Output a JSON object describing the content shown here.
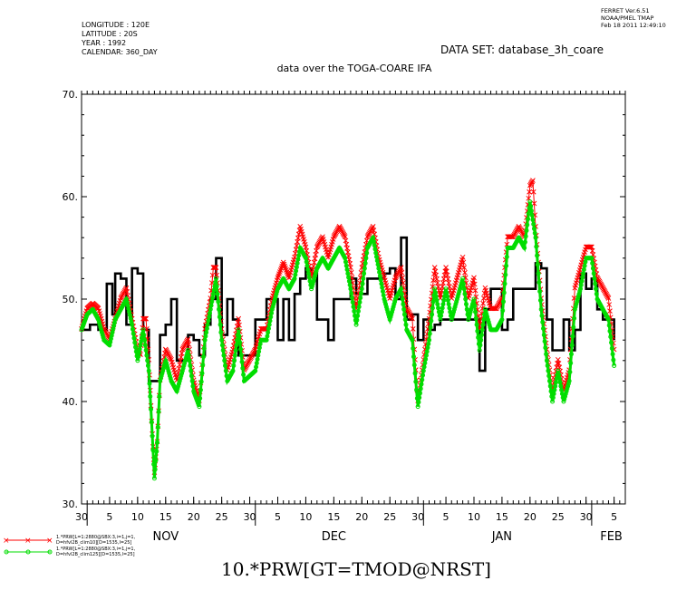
{
  "header": {
    "meta_lines": [
      "LONGITUDE : 120E",
      "LATITUDE : 20S",
      "YEAR : 1992",
      "CALENDAR: 360_DAY"
    ],
    "ferret_lines": [
      "FERRET  Ver.6.51",
      "NOAA/PMEL TMAP",
      "Feb 18 2011 12:49:10"
    ],
    "dataset": "DATA SET: database_3h_coare",
    "title": "data over the TOGA-COARE IFA"
  },
  "legend": {
    "entries": [
      {
        "line1": "1.*PRW[L=1:2880@SBX:3,i=1,j=1,",
        "line2": "D=hfvl2B_clim10][D=1535,l=25]",
        "color": "#ff0000",
        "marker": "x"
      },
      {
        "line1": "1.*PRW[L=1:2880@SBX:3,i=1,j=1,",
        "line2": "D=hfvl2B_clim125][D=1535,l=25]",
        "color": "#00dd00",
        "marker": "o"
      }
    ]
  },
  "footer_label": "10.*PRW[GT=TMOD@NRST]",
  "chart_data": {
    "type": "line",
    "title": "data over the TOGA-COARE IFA",
    "xlabel": "",
    "ylabel": "",
    "ylim": [
      30,
      70
    ],
    "xlim": [
      0,
      97
    ],
    "grid": false,
    "legend_position": "bottom-left",
    "yticks": [
      "30.",
      "40.",
      "50.",
      "60.",
      "70."
    ],
    "xticks_day": [
      "30",
      "5",
      "10",
      "15",
      "20",
      "25",
      "30",
      "5",
      "10",
      "15",
      "20",
      "25",
      "30",
      "5",
      "10",
      "15",
      "20",
      "25",
      "30",
      "5"
    ],
    "month_labels": [
      "NOV",
      "DEC",
      "JAN",
      "FEB"
    ],
    "series": [
      {
        "color": "#000000",
        "style": "step",
        "points": [
          [
            0,
            47
          ],
          [
            1.5,
            47.5
          ],
          [
            3,
            47
          ],
          [
            4.5,
            51.5
          ],
          [
            5.5,
            48.5
          ],
          [
            6,
            52.5
          ],
          [
            7,
            52
          ],
          [
            8,
            47.5
          ],
          [
            9,
            53
          ],
          [
            10,
            52.5
          ],
          [
            11,
            47
          ],
          [
            12,
            42
          ],
          [
            14,
            46.5
          ],
          [
            15,
            47.5
          ],
          [
            16,
            50
          ],
          [
            17,
            44
          ],
          [
            19,
            46.5
          ],
          [
            20,
            46
          ],
          [
            21,
            44.5
          ],
          [
            22,
            47.5
          ],
          [
            23,
            50
          ],
          [
            24,
            54
          ],
          [
            25,
            46.5
          ],
          [
            26,
            50
          ],
          [
            27,
            48
          ],
          [
            28,
            44.5
          ],
          [
            31,
            48
          ],
          [
            33,
            50
          ],
          [
            35,
            46
          ],
          [
            36,
            50
          ],
          [
            37,
            46
          ],
          [
            38,
            50.5
          ],
          [
            39,
            52
          ],
          [
            40,
            53
          ],
          [
            41,
            52.5
          ],
          [
            42,
            48
          ],
          [
            44,
            46
          ],
          [
            45,
            50
          ],
          [
            46,
            50
          ],
          [
            48,
            52
          ],
          [
            49,
            50.5
          ],
          [
            51,
            52
          ],
          [
            53,
            52
          ],
          [
            54,
            52.5
          ],
          [
            55,
            53
          ],
          [
            56,
            50
          ],
          [
            57,
            56
          ],
          [
            58,
            48
          ],
          [
            59,
            48.5
          ],
          [
            60,
            46
          ],
          [
            61,
            48
          ],
          [
            62,
            47
          ],
          [
            63,
            47.5
          ],
          [
            64,
            48
          ],
          [
            70,
            48
          ],
          [
            71,
            43
          ],
          [
            72,
            49
          ],
          [
            73,
            51
          ],
          [
            74,
            51
          ],
          [
            75,
            47
          ],
          [
            76,
            48
          ],
          [
            77,
            51
          ],
          [
            80,
            51
          ],
          [
            81,
            53.5
          ],
          [
            82,
            53
          ],
          [
            83,
            48
          ],
          [
            84,
            45
          ],
          [
            86,
            48
          ],
          [
            87,
            45
          ],
          [
            88,
            47
          ],
          [
            89,
            52.5
          ],
          [
            90,
            51
          ],
          [
            91,
            52
          ],
          [
            92,
            49
          ],
          [
            93,
            48
          ],
          [
            94,
            48
          ],
          [
            95,
            46
          ]
        ]
      },
      {
        "color": "#ff0000",
        "style": "x",
        "points": [
          [
            0,
            47
          ],
          [
            1,
            49
          ],
          [
            2,
            49.5
          ],
          [
            3,
            49
          ],
          [
            4,
            47
          ],
          [
            5,
            46
          ],
          [
            6,
            48
          ],
          [
            7,
            50
          ],
          [
            8,
            51
          ],
          [
            9,
            48
          ],
          [
            10,
            45
          ],
          [
            10.5,
            44.5
          ],
          [
            11,
            48
          ],
          [
            11.5,
            48
          ],
          [
            12,
            44
          ],
          [
            12.5,
            38
          ],
          [
            13,
            33
          ],
          [
            13.5,
            36
          ],
          [
            14,
            42
          ],
          [
            15,
            45
          ],
          [
            16,
            44
          ],
          [
            17,
            42
          ],
          [
            18,
            45
          ],
          [
            19,
            46
          ],
          [
            20,
            42
          ],
          [
            21,
            40
          ],
          [
            22,
            47
          ],
          [
            23,
            50
          ],
          [
            23.5,
            53
          ],
          [
            24,
            53
          ],
          [
            25,
            47
          ],
          [
            26,
            43
          ],
          [
            27,
            45
          ],
          [
            28,
            48
          ],
          [
            29,
            43
          ],
          [
            30,
            44
          ],
          [
            31,
            45
          ],
          [
            32,
            47
          ],
          [
            33,
            47
          ],
          [
            34,
            50
          ],
          [
            35,
            52
          ],
          [
            36,
            53.5
          ],
          [
            37,
            52
          ],
          [
            38,
            54
          ],
          [
            39,
            57
          ],
          [
            40,
            55
          ],
          [
            41,
            52
          ],
          [
            42,
            55
          ],
          [
            43,
            56
          ],
          [
            44,
            54
          ],
          [
            45,
            56
          ],
          [
            46,
            57
          ],
          [
            47,
            56
          ],
          [
            48,
            53
          ],
          [
            49,
            49
          ],
          [
            50,
            53
          ],
          [
            51,
            56
          ],
          [
            52,
            57
          ],
          [
            53,
            54
          ],
          [
            54,
            52
          ],
          [
            55,
            50
          ],
          [
            56,
            52
          ],
          [
            57,
            53
          ],
          [
            58,
            49
          ],
          [
            59,
            48
          ],
          [
            60,
            40
          ],
          [
            61,
            44
          ],
          [
            62,
            48
          ],
          [
            63,
            53
          ],
          [
            64,
            50
          ],
          [
            65,
            53
          ],
          [
            66,
            50
          ],
          [
            67,
            52
          ],
          [
            68,
            54
          ],
          [
            69,
            50
          ],
          [
            70,
            52
          ],
          [
            71,
            47
          ],
          [
            72,
            51
          ],
          [
            73,
            49
          ],
          [
            74,
            49
          ],
          [
            75,
            50
          ],
          [
            76,
            56
          ],
          [
            77,
            56
          ],
          [
            78,
            57
          ],
          [
            79,
            56
          ],
          [
            80,
            61
          ],
          [
            80.5,
            61.5
          ],
          [
            81,
            57
          ],
          [
            82,
            50
          ],
          [
            83,
            45
          ],
          [
            84,
            41
          ],
          [
            85,
            44
          ],
          [
            86,
            41
          ],
          [
            87,
            43
          ],
          [
            88,
            51
          ],
          [
            89,
            53
          ],
          [
            90,
            55
          ],
          [
            91,
            55
          ],
          [
            92,
            52
          ],
          [
            93,
            51
          ],
          [
            94,
            50
          ],
          [
            95,
            45
          ]
        ]
      },
      {
        "color": "#00dd00",
        "style": "o",
        "points": [
          [
            0,
            47
          ],
          [
            1,
            48.5
          ],
          [
            2,
            49
          ],
          [
            3,
            48
          ],
          [
            4,
            46
          ],
          [
            5,
            45.5
          ],
          [
            6,
            48
          ],
          [
            7,
            49
          ],
          [
            8,
            50
          ],
          [
            9,
            47.5
          ],
          [
            10,
            44
          ],
          [
            11,
            47
          ],
          [
            12,
            43
          ],
          [
            12.5,
            38
          ],
          [
            13,
            32.5
          ],
          [
            13.5,
            36
          ],
          [
            14,
            42
          ],
          [
            15,
            44
          ],
          [
            16,
            42
          ],
          [
            17,
            41
          ],
          [
            18,
            43
          ],
          [
            19,
            45
          ],
          [
            20,
            41
          ],
          [
            21,
            39.5
          ],
          [
            22,
            46
          ],
          [
            23,
            49
          ],
          [
            24,
            52
          ],
          [
            25,
            46
          ],
          [
            26,
            42
          ],
          [
            27,
            43
          ],
          [
            28,
            47
          ],
          [
            29,
            42
          ],
          [
            30,
            42.5
          ],
          [
            31,
            43
          ],
          [
            32,
            46
          ],
          [
            33,
            46
          ],
          [
            34,
            49
          ],
          [
            35,
            51
          ],
          [
            36,
            52
          ],
          [
            37,
            51
          ],
          [
            38,
            52
          ],
          [
            39,
            55
          ],
          [
            40,
            54
          ],
          [
            41,
            51
          ],
          [
            42,
            53
          ],
          [
            43,
            54
          ],
          [
            44,
            53
          ],
          [
            45,
            54
          ],
          [
            46,
            55
          ],
          [
            47,
            54
          ],
          [
            48,
            51
          ],
          [
            49,
            47.5
          ],
          [
            50,
            51
          ],
          [
            51,
            55
          ],
          [
            52,
            56
          ],
          [
            53,
            53
          ],
          [
            54,
            50
          ],
          [
            55,
            48
          ],
          [
            56,
            50
          ],
          [
            57,
            51
          ],
          [
            58,
            47
          ],
          [
            59,
            46
          ],
          [
            60,
            39.5
          ],
          [
            61,
            43
          ],
          [
            62,
            46
          ],
          [
            63,
            51
          ],
          [
            64,
            48
          ],
          [
            65,
            51
          ],
          [
            66,
            48
          ],
          [
            67,
            50
          ],
          [
            68,
            52
          ],
          [
            69,
            48
          ],
          [
            70,
            50
          ],
          [
            71,
            45
          ],
          [
            72,
            49
          ],
          [
            73,
            47
          ],
          [
            74,
            47
          ],
          [
            75,
            48
          ],
          [
            76,
            55
          ],
          [
            77,
            55
          ],
          [
            78,
            56
          ],
          [
            79,
            55
          ],
          [
            80,
            59.5
          ],
          [
            81,
            56
          ],
          [
            82,
            49
          ],
          [
            83,
            44
          ],
          [
            84,
            40
          ],
          [
            85,
            43
          ],
          [
            86,
            40
          ],
          [
            87,
            42
          ],
          [
            88,
            49
          ],
          [
            89,
            51
          ],
          [
            90,
            54
          ],
          [
            91,
            54
          ],
          [
            92,
            50
          ],
          [
            93,
            49
          ],
          [
            94,
            48
          ],
          [
            95,
            43.5
          ]
        ]
      }
    ]
  }
}
